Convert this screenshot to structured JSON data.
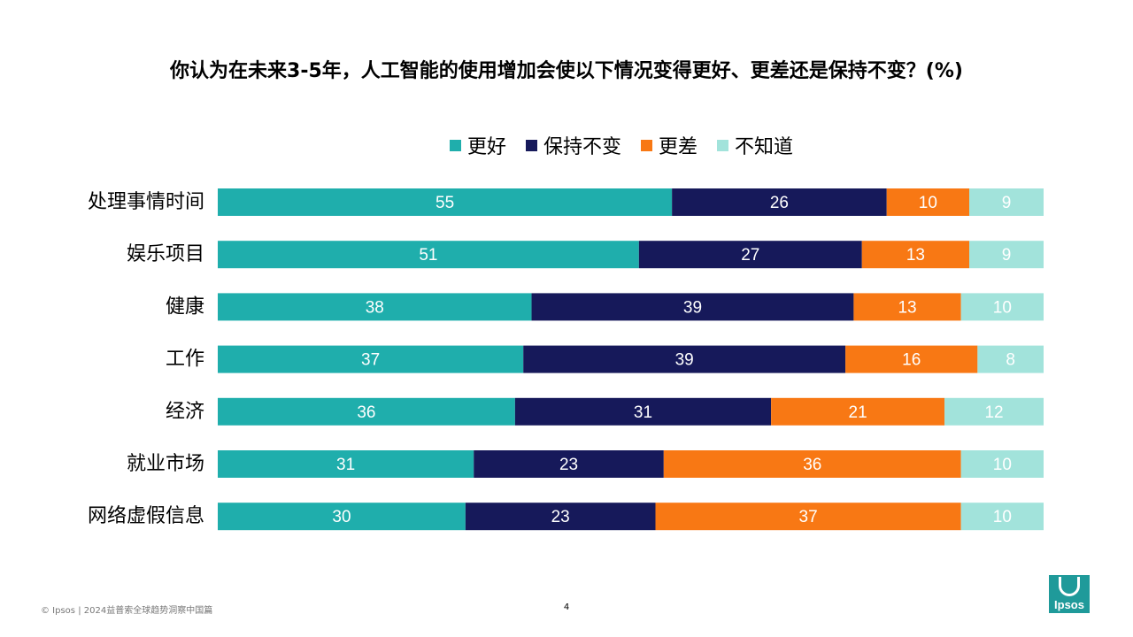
{
  "title": "你认为在未来3-5年，人工智能的使用增加会使以下情况变得更好、更差还是保持不变？(%)",
  "legend": [
    {
      "label": "更好",
      "color": "#1faeac"
    },
    {
      "label": "保持不变",
      "color": "#16195a"
    },
    {
      "label": "更差",
      "color": "#f87814"
    },
    {
      "label": "不知道",
      "color": "#a2e3db"
    }
  ],
  "chart_data": {
    "type": "bar",
    "orientation": "horizontal",
    "stacked": true,
    "title": "你认为在未来3-5年，人工智能的使用增加会使以下情况变得更好、更差还是保持不变？(%)",
    "categories": [
      "处理事情时间",
      "娱乐项目",
      "健康",
      "工作",
      "经济",
      "就业市场",
      "网络虚假信息"
    ],
    "series": [
      {
        "name": "更好",
        "color": "#1faeac",
        "label_color": "#ffffff",
        "values": [
          55,
          51,
          38,
          37,
          36,
          31,
          30
        ]
      },
      {
        "name": "保持不变",
        "color": "#16195a",
        "label_color": "#ffffff",
        "values": [
          26,
          27,
          39,
          39,
          31,
          23,
          23
        ]
      },
      {
        "name": "更差",
        "color": "#f87814",
        "label_color": "#ffffff",
        "values": [
          10,
          13,
          13,
          16,
          21,
          36,
          37
        ]
      },
      {
        "name": "不知道",
        "color": "#a2e3db",
        "label_color": "#ffffff",
        "values": [
          9,
          9,
          10,
          8,
          12,
          10,
          10
        ]
      }
    ],
    "xlim": [
      0,
      100
    ],
    "xlabel": "",
    "ylabel": "",
    "grid": false,
    "legend_position": "top"
  },
  "footer": {
    "source": "© Ipsos | 2024益普索全球趋势洞察中国篇",
    "page_number": "4"
  },
  "logo": {
    "text": "Ipsos"
  }
}
